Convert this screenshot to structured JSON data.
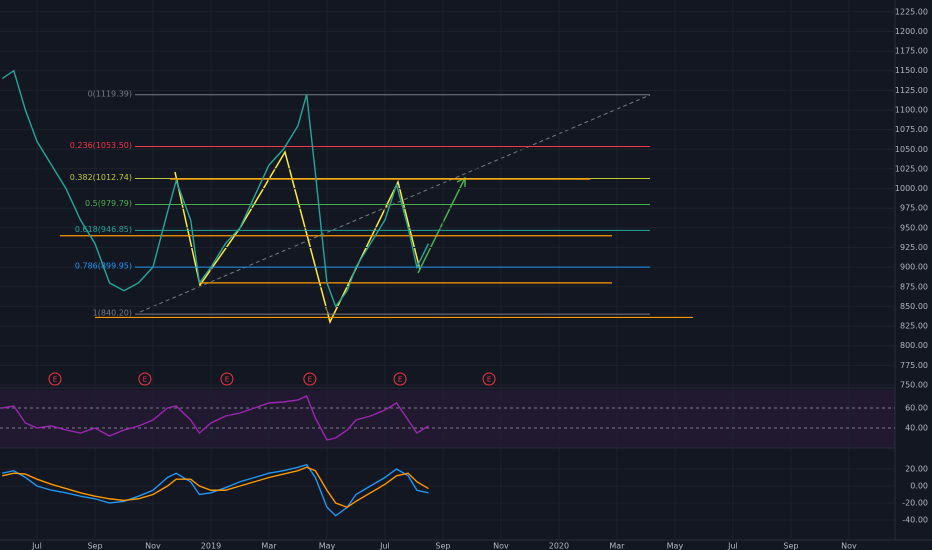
{
  "chart_data": {
    "type": "line",
    "x": [
      -1.2,
      -0.8,
      -0.4,
      0,
      0.5,
      1,
      1.5,
      2,
      2.5,
      3,
      3.5,
      4,
      4.5,
      4.8,
      5.3,
      5.6,
      6,
      6.5,
      7,
      7.5,
      8,
      8.5,
      9,
      9.3,
      9.6,
      10,
      10.3,
      10.7,
      11,
      11.5,
      12,
      12.4,
      12.8,
      13.1,
      13.5
    ],
    "series": [
      {
        "color": "#26a69a",
        "values": [
          1140,
          1150,
          1100,
          1060,
          1030,
          1000,
          960,
          930,
          880,
          870,
          880,
          900,
          970,
          1010,
          960,
          880,
          900,
          930,
          950,
          990,
          1030,
          1050,
          1080,
          1120,
          1020,
          880,
          850,
          870,
          900,
          930,
          960,
          1005,
          950,
          900,
          930
        ]
      }
    ],
    "rsi": {
      "color": "#9c27b0",
      "values": [
        60,
        62,
        45,
        40,
        42,
        38,
        35,
        40,
        32,
        38,
        42,
        48,
        60,
        62,
        48,
        35,
        45,
        52,
        55,
        60,
        65,
        66,
        68,
        72,
        50,
        28,
        30,
        38,
        48,
        52,
        58,
        65,
        48,
        35,
        42
      ],
      "ylim": [
        21,
        78
      ],
      "yticks": [
        {
          "value": 60,
          "label": "60.00"
        },
        {
          "value": 40,
          "label": "40.00"
        }
      ]
    },
    "macd": {
      "series": [
        {
          "color": "#2196f3",
          "values": [
            15,
            18,
            10,
            0,
            -5,
            -8,
            -12,
            -15,
            -20,
            -18,
            -12,
            -5,
            10,
            15,
            5,
            -10,
            -8,
            -2,
            5,
            10,
            15,
            18,
            22,
            25,
            10,
            -25,
            -35,
            -25,
            -10,
            0,
            10,
            20,
            12,
            -5,
            -8
          ]
        },
        {
          "color": "#ff9800",
          "values": [
            12,
            15,
            14,
            8,
            2,
            -3,
            -8,
            -12,
            -15,
            -17,
            -15,
            -10,
            0,
            8,
            8,
            0,
            -5,
            -5,
            0,
            5,
            10,
            14,
            18,
            22,
            18,
            -5,
            -20,
            -25,
            -18,
            -8,
            2,
            12,
            15,
            5,
            -3
          ]
        }
      ],
      "ylim": [
        -63.5,
        43.5
      ],
      "yticks": [
        {
          "value": 20,
          "label": "20.00"
        },
        {
          "value": 0,
          "label": "0.00"
        },
        {
          "value": -20,
          "label": "-20.00"
        },
        {
          "value": -40,
          "label": "-40.00"
        }
      ]
    },
    "xlim": [
      -1.276,
      29.59
    ],
    "xticks": [
      {
        "value": 0,
        "label": "Jul"
      },
      {
        "value": 2,
        "label": "Sep"
      },
      {
        "value": 4,
        "label": "Nov"
      },
      {
        "value": 6,
        "label": "2019"
      },
      {
        "value": 8,
        "label": "Mar"
      },
      {
        "value": 10,
        "label": "May"
      },
      {
        "value": 12,
        "label": "Jul"
      },
      {
        "value": 14,
        "label": "Sep"
      },
      {
        "value": 16,
        "label": "Nov"
      },
      {
        "value": 18,
        "label": "2020"
      },
      {
        "value": 20,
        "label": "Mar"
      },
      {
        "value": 22,
        "label": "May"
      },
      {
        "value": 24,
        "label": "Jul"
      },
      {
        "value": 26,
        "label": "Sep"
      },
      {
        "value": 28,
        "label": "Nov"
      }
    ],
    "ylim": [
      750,
      1240
    ],
    "yticks": [
      {
        "value": 750,
        "label": "750.00"
      },
      {
        "value": 775,
        "label": "775.00"
      },
      {
        "value": 800,
        "label": "800.00"
      },
      {
        "value": 825,
        "label": "825.00"
      },
      {
        "value": 850,
        "label": "850.00"
      },
      {
        "value": 875,
        "label": "875.00"
      },
      {
        "value": 900,
        "label": "900.00"
      },
      {
        "value": 925,
        "label": "925.00"
      },
      {
        "value": 950,
        "label": "950.00"
      },
      {
        "value": 975,
        "label": "975.00"
      },
      {
        "value": 1000,
        "label": "1000.00"
      },
      {
        "value": 1025,
        "label": "1025.00"
      },
      {
        "value": 1050,
        "label": "1050.00"
      },
      {
        "value": 1075,
        "label": "1075.00"
      },
      {
        "value": 1100,
        "label": "1100.00"
      },
      {
        "value": 1125,
        "label": "1125.00"
      },
      {
        "value": 1150,
        "label": "1150.00"
      },
      {
        "value": 1175,
        "label": "1175.00"
      },
      {
        "value": 1200,
        "label": "1200.00"
      },
      {
        "value": 1225,
        "label": "1225.00"
      }
    ],
    "grid": true,
    "fib": {
      "x": [
        3.38,
        21.14
      ],
      "levels": [
        {
          "value": 1119.39,
          "label": "0(1119.39)",
          "color": "#787b86"
        },
        {
          "value": 1053.5,
          "label": "0.236(1053.50)",
          "color": "#f23645"
        },
        {
          "value": 1012.74,
          "label": "0.382(1012.74)",
          "color": "#c0ca33"
        },
        {
          "value": 979.79,
          "label": "0.5(979.79)",
          "color": "#4caf50"
        },
        {
          "value": 946.85,
          "label": "0.618(946.85)",
          "color": "#26a69a"
        },
        {
          "value": 899.95,
          "label": "0.786(899.95)",
          "color": "#2196f3"
        },
        {
          "value": 840.2,
          "label": "1(840.20)",
          "color": "#787b86"
        }
      ]
    },
    "support_lines": [
      {
        "value": 1012,
        "x": [
          4.59,
          19.07
        ]
      },
      {
        "value": 940,
        "x": [
          0.79,
          19.83
        ]
      },
      {
        "value": 880,
        "x": [
          5.62,
          19.83
        ]
      },
      {
        "value": 836,
        "x": [
          2.0,
          22.62
        ]
      }
    ],
    "earnings": [
      {
        "x": 0.62,
        "label": "E"
      },
      {
        "x": 3.72,
        "label": "E"
      },
      {
        "x": 6.55,
        "label": "E"
      },
      {
        "x": 9.41,
        "label": "E"
      },
      {
        "x": 12.52,
        "label": "E"
      },
      {
        "x": 15.59,
        "label": "E"
      }
    ]
  }
}
